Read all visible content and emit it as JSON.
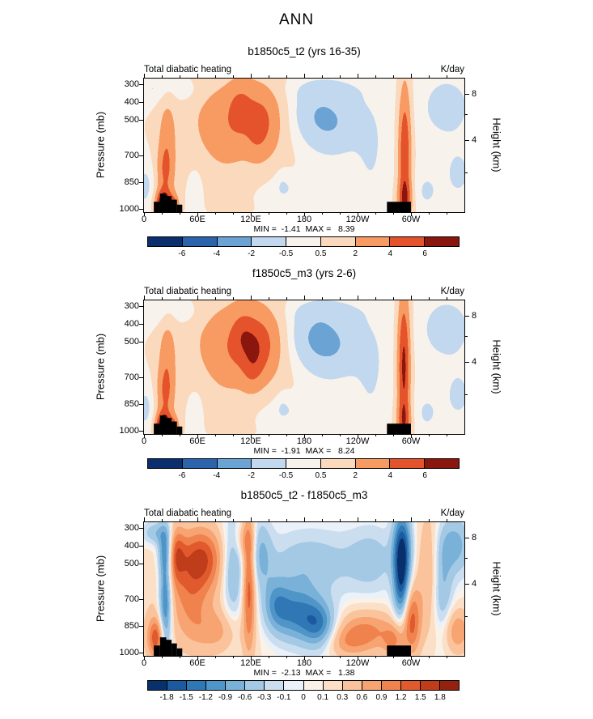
{
  "main_title": "ANN",
  "chart_data": [
    {
      "type": "contour",
      "title": "b1850c5_t2 (yrs 16-35)",
      "field_label": "Total diabatic heating",
      "units_label": "K/day",
      "min": -1.41,
      "max": 8.39,
      "stats_text": "MIN =  -1.41  MAX =   8.39",
      "x_axis": {
        "range": [
          0,
          360
        ],
        "minor_step": 20,
        "ticks": [
          {
            "label": "0",
            "lon": 0
          },
          {
            "label": "60E",
            "lon": 60
          },
          {
            "label": "120E",
            "lon": 120
          },
          {
            "label": "180",
            "lon": 180
          },
          {
            "label": "120W",
            "lon": 240
          },
          {
            "label": "60W",
            "lon": 300
          }
        ]
      },
      "y_left": {
        "title": "Pressure (mb)",
        "range": [
          270,
          1020
        ],
        "ticks": [
          {
            "label": "300",
            "mb": 300
          },
          {
            "label": "400",
            "mb": 400
          },
          {
            "label": "500",
            "mb": 500
          },
          {
            "label": "700",
            "mb": 700
          },
          {
            "label": "850",
            "mb": 850
          },
          {
            "label": "1000",
            "mb": 1000
          }
        ]
      },
      "y_right": {
        "title": "Height (km)",
        "ticks": [
          {
            "label": "8",
            "mb": 356
          },
          {
            "label": "4",
            "mb": 616
          }
        ],
        "minor_mb": [
          472,
          795
        ]
      },
      "colorbar": {
        "boundaries": [
          -6,
          -4,
          -2,
          -0.5,
          0.5,
          2,
          4,
          6
        ],
        "tick_labels": [
          "-6",
          "-4",
          "-2",
          "-0.5",
          "0.5",
          "2",
          "4",
          "6"
        ],
        "colors": [
          "#0b2e6e",
          "#2c63ad",
          "#6ba3d4",
          "#c2d8ee",
          "#f8f2ec",
          "#fbd9bd",
          "#f79b62",
          "#e4532b",
          "#8a160e"
        ]
      },
      "field_model": {
        "background": 0.25,
        "blobs": [
          [
            9.0,
            22,
            985,
            6,
            55
          ],
          [
            3.2,
            24,
            800,
            7,
            110
          ],
          [
            2.2,
            26,
            580,
            7,
            150
          ],
          [
            3.5,
            34,
            985,
            4,
            45
          ],
          [
            2.6,
            118,
            480,
            26,
            170
          ],
          [
            1.8,
            108,
            430,
            9,
            90
          ],
          [
            1.6,
            127,
            560,
            8,
            110
          ],
          [
            1.2,
            141,
            520,
            10,
            130
          ],
          [
            0.8,
            90,
            620,
            14,
            140
          ],
          [
            1.0,
            70,
            500,
            18,
            160
          ],
          [
            -2.4,
            208,
            520,
            26,
            130
          ],
          [
            -0.8,
            185,
            440,
            20,
            100
          ],
          [
            -0.6,
            200,
            330,
            40,
            50
          ],
          [
            5.5,
            293,
            700,
            5,
            280
          ],
          [
            3.0,
            293,
            950,
            6,
            70
          ],
          [
            -1.5,
            340,
            430,
            18,
            110
          ],
          [
            -1.0,
            353,
            800,
            12,
            110
          ],
          [
            -1.2,
            2,
            870,
            8,
            100
          ],
          [
            -0.9,
            175,
            890,
            32,
            60
          ],
          [
            -0.7,
            58,
            860,
            6,
            80
          ],
          [
            -0.6,
            155,
            850,
            6,
            70
          ],
          [
            -1.0,
            12,
            330,
            14,
            55
          ],
          [
            -0.8,
            48,
            340,
            12,
            50
          ],
          [
            -0.8,
            255,
            700,
            12,
            200
          ],
          [
            -0.9,
            318,
            900,
            10,
            80
          ],
          [
            0.7,
            100,
            600,
            70,
            300
          ]
        ]
      },
      "topography": [
        [
          11,
          18,
          962
        ],
        [
          18,
          25,
          916
        ],
        [
          25,
          31,
          930
        ],
        [
          31,
          37,
          950
        ],
        [
          37,
          43,
          978
        ],
        [
          273,
          300,
          962
        ]
      ]
    },
    {
      "type": "contour",
      "title": "f1850c5_m3 (yrs 2-6)",
      "field_label": "Total diabatic heating",
      "units_label": "K/day",
      "min": -1.91,
      "max": 8.24,
      "stats_text": "MIN =  -1.91  MAX =   8.24",
      "x_axis": {
        "range": [
          0,
          360
        ],
        "minor_step": 20,
        "ticks": [
          {
            "label": "0",
            "lon": 0
          },
          {
            "label": "60E",
            "lon": 60
          },
          {
            "label": "120E",
            "lon": 120
          },
          {
            "label": "180",
            "lon": 180
          },
          {
            "label": "120W",
            "lon": 240
          },
          {
            "label": "60W",
            "lon": 300
          }
        ]
      },
      "y_left": {
        "title": "Pressure (mb)",
        "range": [
          270,
          1020
        ],
        "ticks": [
          {
            "label": "300",
            "mb": 300
          },
          {
            "label": "400",
            "mb": 400
          },
          {
            "label": "500",
            "mb": 500
          },
          {
            "label": "700",
            "mb": 700
          },
          {
            "label": "850",
            "mb": 850
          },
          {
            "label": "1000",
            "mb": 1000
          }
        ]
      },
      "y_right": {
        "title": "Height (km)",
        "ticks": [
          {
            "label": "8",
            "mb": 356
          },
          {
            "label": "4",
            "mb": 616
          }
        ],
        "minor_mb": [
          472,
          795
        ]
      },
      "colorbar": {
        "boundaries": [
          -6,
          -4,
          -2,
          -0.5,
          0.5,
          2,
          4,
          6
        ],
        "tick_labels": [
          "-6",
          "-4",
          "-2",
          "-0.5",
          "0.5",
          "2",
          "4",
          "6"
        ],
        "colors": [
          "#0b2e6e",
          "#2c63ad",
          "#6ba3d4",
          "#c2d8ee",
          "#f8f2ec",
          "#fbd9bd",
          "#f79b62",
          "#e4532b",
          "#8a160e"
        ]
      },
      "field_model": {
        "background": 0.25,
        "blobs": [
          [
            8.8,
            22,
            985,
            6,
            55
          ],
          [
            3.2,
            24,
            800,
            7,
            110
          ],
          [
            2.3,
            26,
            580,
            7,
            150
          ],
          [
            3.4,
            34,
            985,
            4,
            45
          ],
          [
            2.9,
            118,
            490,
            27,
            175
          ],
          [
            2.0,
            112,
            470,
            9,
            95
          ],
          [
            1.7,
            127,
            560,
            8,
            115
          ],
          [
            1.4,
            120,
            660,
            8,
            90
          ],
          [
            1.2,
            142,
            520,
            10,
            130
          ],
          [
            0.8,
            92,
            620,
            14,
            140
          ],
          [
            0.8,
            70,
            500,
            18,
            160
          ],
          [
            -2.6,
            206,
            520,
            28,
            135
          ],
          [
            -0.9,
            183,
            440,
            20,
            100
          ],
          [
            -0.6,
            200,
            330,
            40,
            50
          ],
          [
            6.2,
            292,
            640,
            5,
            300
          ],
          [
            2.5,
            292,
            950,
            6,
            70
          ],
          [
            -1.6,
            340,
            430,
            18,
            110
          ],
          [
            -1.0,
            353,
            800,
            12,
            110
          ],
          [
            -1.2,
            2,
            870,
            8,
            100
          ],
          [
            -0.9,
            172,
            890,
            32,
            60
          ],
          [
            -0.7,
            58,
            860,
            6,
            80
          ],
          [
            -0.6,
            155,
            850,
            6,
            70
          ],
          [
            -1.0,
            12,
            330,
            14,
            55
          ],
          [
            -0.8,
            48,
            340,
            12,
            50
          ],
          [
            -0.8,
            255,
            700,
            12,
            200
          ],
          [
            -0.9,
            318,
            900,
            10,
            80
          ],
          [
            0.7,
            100,
            600,
            70,
            300
          ]
        ]
      },
      "topography": [
        [
          11,
          18,
          962
        ],
        [
          18,
          25,
          916
        ],
        [
          25,
          31,
          930
        ],
        [
          31,
          37,
          950
        ],
        [
          37,
          43,
          978
        ],
        [
          273,
          300,
          962
        ]
      ]
    },
    {
      "type": "contour",
      "title": "b1850c5_t2 - f1850c5_m3",
      "field_label": "Total diabatic heating",
      "units_label": "K/day",
      "min": -2.13,
      "max": 1.38,
      "stats_text": "MIN =  -2.13  MAX =   1.38",
      "x_axis": {
        "range": [
          0,
          360
        ],
        "minor_step": 20,
        "ticks": [
          {
            "label": "0",
            "lon": 0
          },
          {
            "label": "60E",
            "lon": 60
          },
          {
            "label": "120E",
            "lon": 120
          },
          {
            "label": "180",
            "lon": 180
          },
          {
            "label": "120W",
            "lon": 240
          },
          {
            "label": "60W",
            "lon": 300
          }
        ]
      },
      "y_left": {
        "title": "Pressure (mb)",
        "range": [
          270,
          1020
        ],
        "ticks": [
          {
            "label": "300",
            "mb": 300
          },
          {
            "label": "400",
            "mb": 400
          },
          {
            "label": "500",
            "mb": 500
          },
          {
            "label": "700",
            "mb": 700
          },
          {
            "label": "850",
            "mb": 850
          },
          {
            "label": "1000",
            "mb": 1000
          }
        ]
      },
      "y_right": {
        "title": "Height (km)",
        "ticks": [
          {
            "label": "8",
            "mb": 356
          },
          {
            "label": "4",
            "mb": 616
          }
        ],
        "minor_mb": [
          472,
          795
        ]
      },
      "colorbar": {
        "boundaries": [
          -1.8,
          -1.5,
          -1.2,
          -0.9,
          -0.6,
          -0.3,
          -0.1,
          0,
          0.1,
          0.3,
          0.6,
          0.9,
          1.2,
          1.5,
          1.8
        ],
        "tick_labels": [
          "-1.8",
          "-1.5",
          "-1.2",
          "-0.9",
          "-0.6",
          "-0.3",
          "-0.1",
          "0",
          "0.1",
          "0.3",
          "0.6",
          "0.9",
          "1.2",
          "1.5",
          "1.8"
        ],
        "colors": [
          "#08306b",
          "#1b5a9f",
          "#2f77b5",
          "#4f95c8",
          "#7ab1d8",
          "#a3c9e5",
          "#cbdeef",
          "#eaf1f8",
          "#faf1e8",
          "#fbdfc7",
          "#fac39c",
          "#f7a472",
          "#f0824d",
          "#e05a2e",
          "#c03d1c",
          "#93220f"
        ]
      },
      "field_model": {
        "background": 0.05,
        "blobs": [
          [
            1.3,
            14,
            920,
            7,
            80
          ],
          [
            -1.5,
            24,
            720,
            5,
            240
          ],
          [
            -0.8,
            24,
            420,
            6,
            90
          ],
          [
            1.0,
            36,
            450,
            7,
            110
          ],
          [
            1.3,
            64,
            470,
            17,
            120
          ],
          [
            0.6,
            52,
            700,
            14,
            160
          ],
          [
            0.5,
            80,
            880,
            18,
            80
          ],
          [
            -0.9,
            100,
            550,
            9,
            200
          ],
          [
            1.3,
            118,
            600,
            5,
            270
          ],
          [
            0.5,
            112,
            370,
            8,
            70
          ],
          [
            -0.7,
            131,
            450,
            9,
            140
          ],
          [
            -0.6,
            185,
            500,
            35,
            120
          ],
          [
            -1.3,
            170,
            780,
            20,
            110
          ],
          [
            -1.1,
            197,
            850,
            13,
            90
          ],
          [
            -0.7,
            148,
            720,
            10,
            100
          ],
          [
            0.9,
            250,
            880,
            24,
            80
          ],
          [
            0.5,
            228,
            950,
            18,
            60
          ],
          [
            -0.5,
            255,
            480,
            18,
            120
          ],
          [
            -1.9,
            290,
            430,
            7,
            150
          ],
          [
            -1.1,
            289,
            650,
            6,
            130
          ],
          [
            1.2,
            301,
            820,
            7,
            140
          ],
          [
            0.7,
            280,
            940,
            8,
            60
          ],
          [
            0.6,
            320,
            550,
            9,
            250
          ],
          [
            -0.7,
            335,
            650,
            8,
            180
          ],
          [
            -0.8,
            349,
            400,
            13,
            110
          ],
          [
            0.8,
            352,
            880,
            11,
            90
          ],
          [
            -0.6,
            12,
            330,
            10,
            45
          ],
          [
            0.3,
            60,
            700,
            60,
            250
          ]
        ]
      },
      "topography": [
        [
          11,
          18,
          962
        ],
        [
          18,
          25,
          916
        ],
        [
          25,
          31,
          930
        ],
        [
          31,
          37,
          950
        ],
        [
          37,
          43,
          978
        ],
        [
          273,
          300,
          962
        ]
      ]
    }
  ]
}
